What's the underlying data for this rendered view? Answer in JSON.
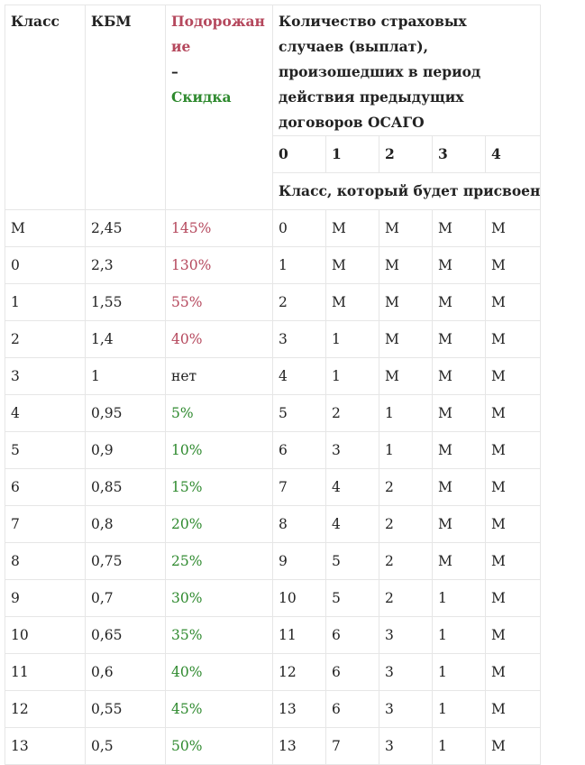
{
  "table": {
    "headers": {
      "class": "Класс",
      "kbm": "КБМ",
      "increase": "Подорожание",
      "dash": "–",
      "discount": "Скидка",
      "count": "Количество страховых случаев (выплат), произошедших в период действия предыдущих договоров ОСАГО",
      "count_cols": [
        "0",
        "1",
        "2",
        "3",
        "4"
      ],
      "assigned": "Класс, который будет присвоен"
    },
    "rows": [
      {
        "cls": "М",
        "kbm": "2,45",
        "pct": "145%",
        "kind": "increase",
        "a0": "0",
        "a1": "М",
        "a2": "М",
        "a3": "М",
        "a4": "М"
      },
      {
        "cls": "0",
        "kbm": "2,3",
        "pct": "130%",
        "kind": "increase",
        "a0": "1",
        "a1": "М",
        "a2": "М",
        "a3": "М",
        "a4": "М"
      },
      {
        "cls": "1",
        "kbm": "1,55",
        "pct": "55%",
        "kind": "increase",
        "a0": "2",
        "a1": "М",
        "a2": "М",
        "a3": "М",
        "a4": "М"
      },
      {
        "cls": "2",
        "kbm": "1,4",
        "pct": "40%",
        "kind": "increase",
        "a0": "3",
        "a1": "1",
        "a2": "М",
        "a3": "М",
        "a4": "М"
      },
      {
        "cls": "3",
        "kbm": "1",
        "pct": "нет",
        "kind": "none",
        "a0": "4",
        "a1": "1",
        "a2": "М",
        "a3": "М",
        "a4": "М"
      },
      {
        "cls": "4",
        "kbm": "0,95",
        "pct": "5%",
        "kind": "discount",
        "a0": "5",
        "a1": "2",
        "a2": "1",
        "a3": "М",
        "a4": "М"
      },
      {
        "cls": "5",
        "kbm": "0,9",
        "pct": "10%",
        "kind": "discount",
        "a0": "6",
        "a1": "3",
        "a2": "1",
        "a3": "М",
        "a4": "М"
      },
      {
        "cls": "6",
        "kbm": "0,85",
        "pct": "15%",
        "kind": "discount",
        "a0": "7",
        "a1": "4",
        "a2": "2",
        "a3": "М",
        "a4": "М"
      },
      {
        "cls": "7",
        "kbm": "0,8",
        "pct": "20%",
        "kind": "discount",
        "a0": "8",
        "a1": "4",
        "a2": "2",
        "a3": "М",
        "a4": "М"
      },
      {
        "cls": "8",
        "kbm": "0,75",
        "pct": "25%",
        "kind": "discount",
        "a0": "9",
        "a1": "5",
        "a2": "2",
        "a3": "М",
        "a4": "М"
      },
      {
        "cls": "9",
        "kbm": "0,7",
        "pct": "30%",
        "kind": "discount",
        "a0": "10",
        "a1": "5",
        "a2": "2",
        "a3": "1",
        "a4": "М"
      },
      {
        "cls": "10",
        "kbm": "0,65",
        "pct": "35%",
        "kind": "discount",
        "a0": "11",
        "a1": "6",
        "a2": "3",
        "a3": "1",
        "a4": "М"
      },
      {
        "cls": "11",
        "kbm": "0,6",
        "pct": "40%",
        "kind": "discount",
        "a0": "12",
        "a1": "6",
        "a2": "3",
        "a3": "1",
        "a4": "М"
      },
      {
        "cls": "12",
        "kbm": "0,55",
        "pct": "45%",
        "kind": "discount",
        "a0": "13",
        "a1": "6",
        "a2": "3",
        "a3": "1",
        "a4": "М"
      },
      {
        "cls": "13",
        "kbm": "0,5",
        "pct": "50%",
        "kind": "discount",
        "a0": "13",
        "a1": "7",
        "a2": "3",
        "a3": "1",
        "a4": "М"
      }
    ],
    "colors": {
      "increase": "#b5485d",
      "discount": "#2f8a2f",
      "border": "#e6e6e6"
    }
  }
}
